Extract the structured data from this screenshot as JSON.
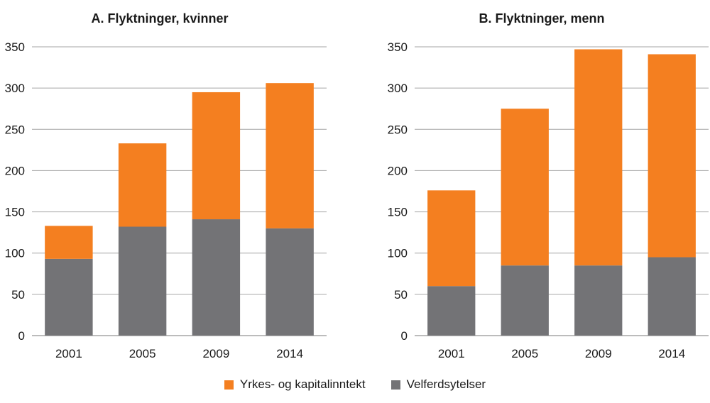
{
  "colors": {
    "grid": "#a6a6a6",
    "axis": "#7a7a7a"
  },
  "legend": [
    {
      "label": "Yrkes- og kapitalinntekt",
      "color": "#f47f20"
    },
    {
      "label": "Velferdsytelser",
      "color": "#737376"
    }
  ],
  "chart_data": [
    {
      "type": "bar",
      "stacked": true,
      "title": "A. Flyktninger, kvinner",
      "categories": [
        "2001",
        "2005",
        "2009",
        "2014"
      ],
      "ylim": [
        0,
        350
      ],
      "yticks": [
        0,
        50,
        100,
        150,
        200,
        250,
        300,
        350
      ],
      "grid": true,
      "series": [
        {
          "name": "Velferdsytelser",
          "color": "#737376",
          "values": [
            93,
            132,
            141,
            130
          ]
        },
        {
          "name": "Yrkes- og kapitalinntekt",
          "color": "#f47f20",
          "values": [
            40,
            101,
            154,
            176
          ]
        }
      ]
    },
    {
      "type": "bar",
      "stacked": true,
      "title": "B. Flyktninger, menn",
      "categories": [
        "2001",
        "2005",
        "2009",
        "2014"
      ],
      "ylim": [
        0,
        350
      ],
      "yticks": [
        0,
        50,
        100,
        150,
        200,
        250,
        300,
        350
      ],
      "grid": true,
      "series": [
        {
          "name": "Velferdsytelser",
          "color": "#737376",
          "values": [
            60,
            85,
            85,
            95
          ]
        },
        {
          "name": "Yrkes- og kapitalinntekt",
          "color": "#f47f20",
          "values": [
            116,
            190,
            262,
            246
          ]
        }
      ]
    }
  ]
}
